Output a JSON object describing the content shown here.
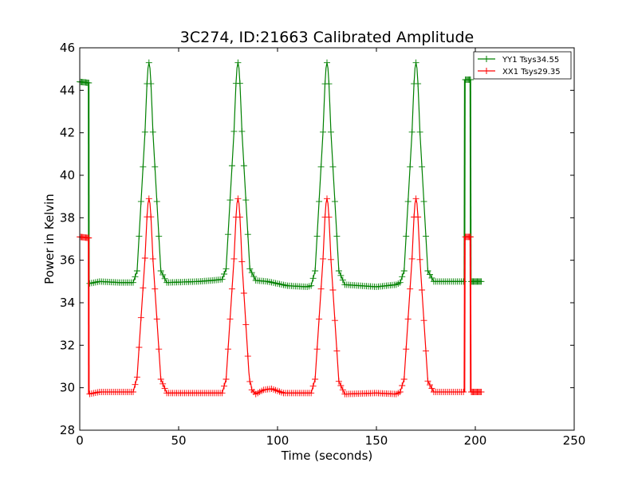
{
  "chart_data": {
    "type": "line",
    "title": "3C274, ID:21663 Calibrated Amplitude",
    "xlabel": "Time (seconds)",
    "ylabel": "Power in Kelvin",
    "xlim": [
      0,
      250
    ],
    "ylim": [
      28,
      46
    ],
    "xticks": [
      0,
      50,
      100,
      150,
      200,
      250
    ],
    "yticks": [
      28,
      30,
      32,
      34,
      36,
      38,
      40,
      42,
      44,
      46
    ],
    "grid": false,
    "legend": "top-right",
    "marker": "plus",
    "series": [
      {
        "name": "YY1 Tsys34.55",
        "color": "#008000",
        "anchors": [
          [
            0,
            44.4
          ],
          [
            4.5,
            44.35
          ],
          [
            4.6,
            34.9
          ],
          [
            10,
            35.0
          ],
          [
            20,
            34.95
          ],
          [
            27,
            34.95
          ],
          [
            29,
            35.5
          ],
          [
            35,
            45.3
          ],
          [
            41,
            35.5
          ],
          [
            44,
            34.95
          ],
          [
            60,
            35.0
          ],
          [
            67,
            35.05
          ],
          [
            72,
            35.1
          ],
          [
            74,
            35.6
          ],
          [
            80,
            45.3
          ],
          [
            86,
            35.6
          ],
          [
            89,
            35.05
          ],
          [
            95,
            35.0
          ],
          [
            105,
            34.8
          ],
          [
            115,
            34.75
          ],
          [
            117,
            34.8
          ],
          [
            119,
            35.5
          ],
          [
            125,
            45.3
          ],
          [
            131,
            35.5
          ],
          [
            134,
            34.85
          ],
          [
            150,
            34.75
          ],
          [
            160,
            34.85
          ],
          [
            162,
            34.95
          ],
          [
            164,
            35.5
          ],
          [
            170,
            45.3
          ],
          [
            176,
            35.5
          ],
          [
            179,
            35.0
          ],
          [
            194.5,
            35.0
          ],
          [
            194.7,
            44.5
          ],
          [
            197.5,
            44.5
          ],
          [
            197.7,
            35.0
          ],
          [
            203,
            35.0
          ]
        ],
        "dense_ranges": [
          [
            0,
            4.5
          ],
          [
            195,
            197.5
          ],
          [
            198,
            203
          ]
        ]
      },
      {
        "name": "XX1 Tsys29.35",
        "color": "#ff0000",
        "anchors": [
          [
            0,
            37.1
          ],
          [
            4.5,
            37.05
          ],
          [
            4.6,
            29.7
          ],
          [
            10,
            29.8
          ],
          [
            20,
            29.8
          ],
          [
            27,
            29.8
          ],
          [
            29,
            30.5
          ],
          [
            35,
            38.9
          ],
          [
            41,
            30.4
          ],
          [
            44,
            29.75
          ],
          [
            60,
            29.75
          ],
          [
            72,
            29.75
          ],
          [
            74,
            30.4
          ],
          [
            80,
            38.9
          ],
          [
            86,
            30.0
          ],
          [
            89,
            29.7
          ],
          [
            93,
            29.9
          ],
          [
            97,
            29.95
          ],
          [
            103,
            29.75
          ],
          [
            117,
            29.75
          ],
          [
            119,
            30.4
          ],
          [
            125,
            38.9
          ],
          [
            131,
            30.3
          ],
          [
            134,
            29.7
          ],
          [
            150,
            29.75
          ],
          [
            160,
            29.7
          ],
          [
            162,
            29.8
          ],
          [
            164,
            30.4
          ],
          [
            170,
            38.9
          ],
          [
            176,
            30.3
          ],
          [
            179,
            29.8
          ],
          [
            194.5,
            29.8
          ],
          [
            194.7,
            37.1
          ],
          [
            197.5,
            37.1
          ],
          [
            197.7,
            29.8
          ],
          [
            203,
            29.8
          ]
        ],
        "dense_ranges": [
          [
            0,
            4.5
          ],
          [
            195,
            197.5
          ],
          [
            198,
            203
          ]
        ]
      }
    ]
  }
}
